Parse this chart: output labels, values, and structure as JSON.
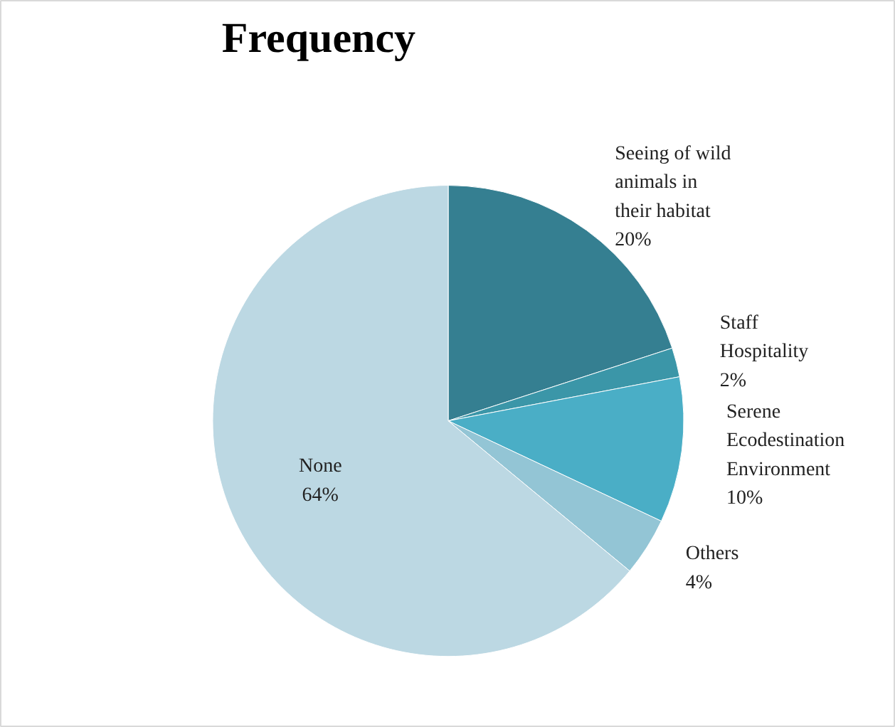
{
  "chart_data": {
    "type": "pie",
    "title": "Frequency",
    "categories": [
      "Seeing of wild animals in their habitat",
      "Staff Hospitality",
      "Serene Ecodestination Environment",
      "Others",
      "None"
    ],
    "values": [
      20,
      2,
      10,
      4,
      64
    ],
    "colors": [
      "#357f91",
      "#3b96a8",
      "#4aaec6",
      "#93c5d5",
      "#bcd8e3"
    ],
    "value_labels": [
      "20%",
      "2%",
      "10%",
      "4%",
      "64%"
    ]
  }
}
